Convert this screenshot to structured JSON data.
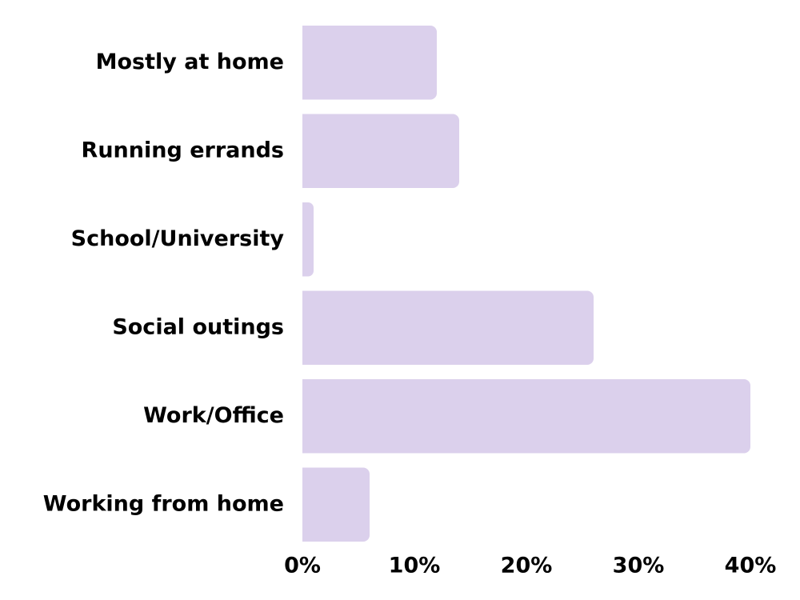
{
  "chart_data": {
    "type": "bar",
    "orientation": "horizontal",
    "categories": [
      "Mostly at home",
      "Running errands",
      "School/University",
      "Social outings",
      "Work/Office",
      "Working from home"
    ],
    "values": [
      12,
      14,
      1,
      26,
      40,
      6
    ],
    "color": "#dbd0ec",
    "xlim": [
      0,
      40
    ],
    "xticks": [
      {
        "value": 0,
        "label": "0%"
      },
      {
        "value": 10,
        "label": "10%"
      },
      {
        "value": 20,
        "label": "20%"
      },
      {
        "value": 30,
        "label": "30%"
      },
      {
        "value": 40,
        "label": "40%"
      }
    ],
    "grid": false
  }
}
